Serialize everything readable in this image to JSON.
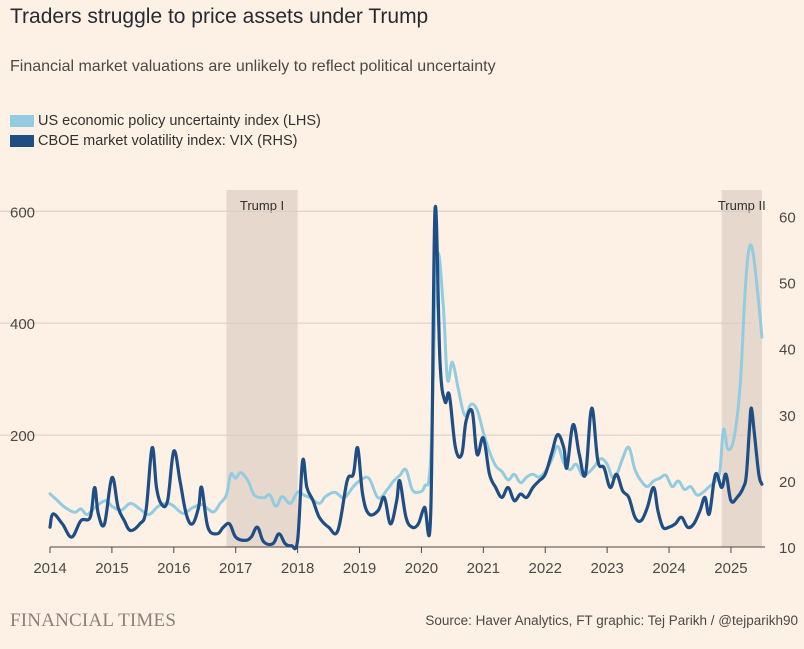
{
  "title": "Traders struggle to price assets under Trump",
  "subtitle": "Financial market valuations are unlikely to reflect political uncertainty",
  "legend": [
    {
      "label": "US economic policy uncertainty index (LHS)",
      "color": "#93cbe0"
    },
    {
      "label": "CBOE market volatility index: VIX (RHS)",
      "color": "#1f4e85"
    }
  ],
  "brand": "FINANCIAL TIMES",
  "source": "Source: Haver Analytics, FT graphic: Tej Parikh / @tejparikh90",
  "chart_data": {
    "type": "line",
    "x_range": [
      2014.0,
      2025.55
    ],
    "x_ticks": [
      {
        "value": 2014,
        "label": "2014"
      },
      {
        "value": 2015,
        "label": "2015"
      },
      {
        "value": 2016,
        "label": "2016"
      },
      {
        "value": 2017,
        "label": "2017"
      },
      {
        "value": 2018,
        "label": "2018"
      },
      {
        "value": 2019,
        "label": "2019"
      },
      {
        "value": 2020,
        "label": "2020"
      },
      {
        "value": 2021,
        "label": "2021"
      },
      {
        "value": 2022,
        "label": "2022"
      },
      {
        "value": 2023,
        "label": "2023"
      },
      {
        "value": 2024,
        "label": "2024"
      },
      {
        "value": 2025,
        "label": "2025"
      }
    ],
    "left_axis": {
      "range": [
        0,
        638
      ],
      "ticks": [
        {
          "value": 200,
          "label": "200"
        },
        {
          "value": 400,
          "label": "400"
        },
        {
          "value": 600,
          "label": "600"
        }
      ]
    },
    "right_axis": {
      "range": [
        10,
        64
      ],
      "ticks": [
        {
          "value": 10,
          "label": "10"
        },
        {
          "value": 20,
          "label": "20"
        },
        {
          "value": 30,
          "label": "30"
        },
        {
          "value": 40,
          "label": "40"
        },
        {
          "value": 50,
          "label": "50"
        },
        {
          "value": 60,
          "label": "60"
        }
      ]
    },
    "shaded_periods": [
      {
        "label": "Trump I",
        "start": 2016.85,
        "end": 2018.0
      },
      {
        "label": "Trump II",
        "start": 2024.85,
        "end": 2025.5
      }
    ],
    "series": [
      {
        "name": "US economic policy uncertainty index (LHS)",
        "axis": "left",
        "color": "#93cbe0",
        "points": [
          [
            2014.0,
            95
          ],
          [
            2014.1,
            85
          ],
          [
            2014.25,
            70
          ],
          [
            2014.4,
            62
          ],
          [
            2014.5,
            68
          ],
          [
            2014.6,
            58
          ],
          [
            2014.75,
            73
          ],
          [
            2014.9,
            83
          ],
          [
            2015.0,
            73
          ],
          [
            2015.15,
            66
          ],
          [
            2015.3,
            78
          ],
          [
            2015.45,
            68
          ],
          [
            2015.6,
            58
          ],
          [
            2015.75,
            73
          ],
          [
            2015.9,
            78
          ],
          [
            2016.0,
            73
          ],
          [
            2016.15,
            60
          ],
          [
            2016.3,
            70
          ],
          [
            2016.45,
            76
          ],
          [
            2016.55,
            68
          ],
          [
            2016.65,
            63
          ],
          [
            2016.75,
            78
          ],
          [
            2016.85,
            93
          ],
          [
            2016.92,
            130
          ],
          [
            2017.0,
            123
          ],
          [
            2017.08,
            133
          ],
          [
            2017.2,
            118
          ],
          [
            2017.3,
            93
          ],
          [
            2017.45,
            88
          ],
          [
            2017.55,
            93
          ],
          [
            2017.65,
            73
          ],
          [
            2017.75,
            90
          ],
          [
            2017.88,
            78
          ],
          [
            2018.0,
            98
          ],
          [
            2018.1,
            93
          ],
          [
            2018.2,
            88
          ],
          [
            2018.35,
            78
          ],
          [
            2018.45,
            90
          ],
          [
            2018.6,
            98
          ],
          [
            2018.75,
            88
          ],
          [
            2018.9,
            108
          ],
          [
            2019.0,
            118
          ],
          [
            2019.15,
            123
          ],
          [
            2019.3,
            88
          ],
          [
            2019.45,
            103
          ],
          [
            2019.55,
            118
          ],
          [
            2019.65,
            128
          ],
          [
            2019.75,
            138
          ],
          [
            2019.85,
            103
          ],
          [
            2019.95,
            98
          ],
          [
            2020.05,
            108
          ],
          [
            2020.15,
            160
          ],
          [
            2020.25,
            510
          ],
          [
            2020.35,
            435
          ],
          [
            2020.42,
            300
          ],
          [
            2020.5,
            330
          ],
          [
            2020.6,
            280
          ],
          [
            2020.7,
            235
          ],
          [
            2020.8,
            255
          ],
          [
            2020.9,
            245
          ],
          [
            2021.0,
            205
          ],
          [
            2021.1,
            170
          ],
          [
            2021.2,
            145
          ],
          [
            2021.3,
            135
          ],
          [
            2021.4,
            120
          ],
          [
            2021.5,
            130
          ],
          [
            2021.6,
            115
          ],
          [
            2021.7,
            125
          ],
          [
            2021.8,
            130
          ],
          [
            2021.9,
            125
          ],
          [
            2022.0,
            135
          ],
          [
            2022.1,
            155
          ],
          [
            2022.2,
            180
          ],
          [
            2022.3,
            150
          ],
          [
            2022.4,
            138
          ],
          [
            2022.5,
            148
          ],
          [
            2022.6,
            128
          ],
          [
            2022.7,
            133
          ],
          [
            2022.8,
            145
          ],
          [
            2022.9,
            158
          ],
          [
            2023.0,
            148
          ],
          [
            2023.08,
            125
          ],
          [
            2023.15,
            128
          ],
          [
            2023.25,
            158
          ],
          [
            2023.35,
            178
          ],
          [
            2023.45,
            138
          ],
          [
            2023.55,
            118
          ],
          [
            2023.65,
            108
          ],
          [
            2023.75,
            118
          ],
          [
            2023.85,
            123
          ],
          [
            2023.95,
            128
          ],
          [
            2024.05,
            108
          ],
          [
            2024.15,
            118
          ],
          [
            2024.25,
            103
          ],
          [
            2024.35,
            108
          ],
          [
            2024.45,
            93
          ],
          [
            2024.55,
            98
          ],
          [
            2024.65,
            108
          ],
          [
            2024.75,
            118
          ],
          [
            2024.82,
            135
          ],
          [
            2024.88,
            210
          ],
          [
            2024.95,
            175
          ],
          [
            2025.05,
            195
          ],
          [
            2025.15,
            290
          ],
          [
            2025.22,
            440
          ],
          [
            2025.28,
            525
          ],
          [
            2025.35,
            530
          ],
          [
            2025.45,
            435
          ],
          [
            2025.5,
            375
          ]
        ]
      },
      {
        "name": "CBOE market volatility index: VIX (RHS)",
        "axis": "right",
        "color": "#1f4e85",
        "points": [
          [
            2014.0,
            13
          ],
          [
            2014.05,
            15
          ],
          [
            2014.2,
            13.5
          ],
          [
            2014.35,
            11.5
          ],
          [
            2014.5,
            14
          ],
          [
            2014.65,
            14.5
          ],
          [
            2014.72,
            19
          ],
          [
            2014.78,
            15
          ],
          [
            2014.88,
            13.5
          ],
          [
            2015.0,
            20.5
          ],
          [
            2015.1,
            16
          ],
          [
            2015.2,
            14
          ],
          [
            2015.3,
            12.5
          ],
          [
            2015.45,
            13.5
          ],
          [
            2015.55,
            15.5
          ],
          [
            2015.65,
            25
          ],
          [
            2015.72,
            19
          ],
          [
            2015.8,
            16.5
          ],
          [
            2015.9,
            17
          ],
          [
            2016.0,
            24.5
          ],
          [
            2016.1,
            20
          ],
          [
            2016.2,
            15
          ],
          [
            2016.3,
            13.5
          ],
          [
            2016.4,
            16
          ],
          [
            2016.45,
            19
          ],
          [
            2016.55,
            13
          ],
          [
            2016.7,
            12
          ],
          [
            2016.8,
            13
          ],
          [
            2016.9,
            13.5
          ],
          [
            2017.0,
            11.5
          ],
          [
            2017.15,
            11
          ],
          [
            2017.25,
            11.5
          ],
          [
            2017.35,
            13
          ],
          [
            2017.45,
            10.8
          ],
          [
            2017.6,
            10.5
          ],
          [
            2017.7,
            12
          ],
          [
            2017.8,
            10.5
          ],
          [
            2017.9,
            10.2
          ],
          [
            2018.0,
            11
          ],
          [
            2018.08,
            23
          ],
          [
            2018.15,
            19
          ],
          [
            2018.25,
            17
          ],
          [
            2018.35,
            14.5
          ],
          [
            2018.5,
            13
          ],
          [
            2018.65,
            12.5
          ],
          [
            2018.8,
            20
          ],
          [
            2018.9,
            21
          ],
          [
            2018.97,
            25
          ],
          [
            2019.05,
            18
          ],
          [
            2019.15,
            15
          ],
          [
            2019.3,
            15.5
          ],
          [
            2019.4,
            17.5
          ],
          [
            2019.5,
            13.5
          ],
          [
            2019.6,
            17
          ],
          [
            2019.65,
            20
          ],
          [
            2019.75,
            14.5
          ],
          [
            2019.85,
            13
          ],
          [
            2019.95,
            13.5
          ],
          [
            2020.05,
            16
          ],
          [
            2020.15,
            15
          ],
          [
            2020.22,
            61
          ],
          [
            2020.3,
            38
          ],
          [
            2020.38,
            32
          ],
          [
            2020.45,
            33
          ],
          [
            2020.55,
            25
          ],
          [
            2020.65,
            24
          ],
          [
            2020.72,
            29
          ],
          [
            2020.82,
            30.5
          ],
          [
            2020.9,
            24
          ],
          [
            2021.0,
            26.5
          ],
          [
            2021.1,
            21
          ],
          [
            2021.2,
            19
          ],
          [
            2021.3,
            17.5
          ],
          [
            2021.4,
            19
          ],
          [
            2021.5,
            17
          ],
          [
            2021.6,
            18
          ],
          [
            2021.7,
            17.5
          ],
          [
            2021.8,
            19
          ],
          [
            2021.9,
            20
          ],
          [
            2022.0,
            21
          ],
          [
            2022.1,
            24
          ],
          [
            2022.2,
            27
          ],
          [
            2022.3,
            25
          ],
          [
            2022.35,
            22
          ],
          [
            2022.45,
            28.5
          ],
          [
            2022.55,
            24
          ],
          [
            2022.65,
            21
          ],
          [
            2022.75,
            31
          ],
          [
            2022.85,
            23
          ],
          [
            2022.95,
            22
          ],
          [
            2023.05,
            19
          ],
          [
            2023.15,
            21
          ],
          [
            2023.25,
            18.5
          ],
          [
            2023.35,
            17.5
          ],
          [
            2023.45,
            14.5
          ],
          [
            2023.55,
            14
          ],
          [
            2023.65,
            16
          ],
          [
            2023.75,
            19
          ],
          [
            2023.82,
            15.5
          ],
          [
            2023.9,
            13
          ],
          [
            2024.0,
            13
          ],
          [
            2024.1,
            13.5
          ],
          [
            2024.2,
            14.5
          ],
          [
            2024.3,
            13
          ],
          [
            2024.4,
            13.5
          ],
          [
            2024.5,
            15.5
          ],
          [
            2024.58,
            17.5
          ],
          [
            2024.65,
            15
          ],
          [
            2024.75,
            21
          ],
          [
            2024.85,
            19
          ],
          [
            2024.92,
            21
          ],
          [
            2025.0,
            17
          ],
          [
            2025.1,
            17.5
          ],
          [
            2025.2,
            19
          ],
          [
            2025.25,
            21
          ],
          [
            2025.3,
            28
          ],
          [
            2025.33,
            31
          ],
          [
            2025.38,
            27
          ],
          [
            2025.45,
            21
          ],
          [
            2025.5,
            19.5
          ]
        ]
      }
    ]
  }
}
